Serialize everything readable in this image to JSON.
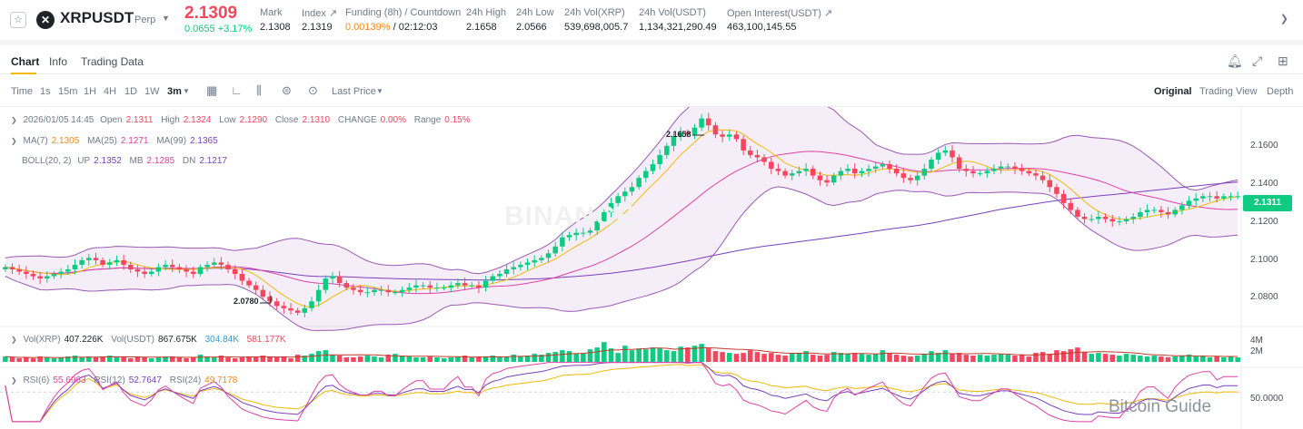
{
  "ticker": {
    "symbol": "XRPUSDT",
    "contract": "Perp",
    "price": "2.1309",
    "change": "0.0655 +3.17%",
    "stats": [
      {
        "label": "Mark",
        "value": "2.1308"
      },
      {
        "label": "Index ↗",
        "value": "2.1319"
      },
      {
        "label": "Funding (8h) / Countdown",
        "value_a": "0.00139%",
        "value_b": " / 02:12:03"
      },
      {
        "label": "24h High",
        "value": "2.1658"
      },
      {
        "label": "24h Low",
        "value": "2.0566"
      },
      {
        "label": "24h Vol(XRP)",
        "value": "539,698,005.7"
      },
      {
        "label": "24h Vol(USDT)",
        "value": "1,134,321,290.49"
      },
      {
        "label": "Open Interest(USDT) ↗",
        "value": "463,100,145.55"
      }
    ]
  },
  "tabs": [
    "Chart",
    "Info",
    "Trading Data"
  ],
  "icons": {
    "star": "star-icon",
    "logo": "xrp-logo-icon",
    "bell": "bell-icon",
    "expand": "expand-icon",
    "grid": "grid-icon"
  },
  "toolbar": {
    "intervals": [
      "Time",
      "1s",
      "15m",
      "1H",
      "4H",
      "1D",
      "1W",
      "3m"
    ],
    "active_interval": "3m",
    "price_type": "Last Price",
    "views": [
      "Original",
      "Trading View",
      "Depth"
    ],
    "active_view": "Original"
  },
  "legend": {
    "ohlc": {
      "date": "2026/01/05 14:45",
      "open_label": "Open",
      "open": "2.1311",
      "high_label": "High",
      "high": "2.1324",
      "low_label": "Low",
      "low": "2.1290",
      "close_label": "Close",
      "close": "2.1310",
      "change_label": "CHANGE",
      "change": "0.00%",
      "range_label": "Range",
      "range": "0.15%"
    },
    "ma": {
      "ma7_label": "MA(7)",
      "ma7": "2.1305",
      "ma25_label": "MA(25)",
      "ma25": "2.1271",
      "ma99_label": "MA(99)",
      "ma99": "2.1365"
    },
    "boll": {
      "label": "BOLL(20, 2)",
      "up_label": "UP",
      "up": "2.1352",
      "mb_label": "MB",
      "mb": "2.1285",
      "dn_label": "DN",
      "dn": "2.1217"
    },
    "vol": {
      "vol_xrp_label": "Vol(XRP)",
      "vol_xrp": "407.226K",
      "vol_usdt_label": "Vol(USDT)",
      "vol_usdt": "867.675K",
      "ma5": "304.84K",
      "ma10": "581.177K"
    },
    "rsi": {
      "rsi6_label": "RSI(6)",
      "rsi6": "55.6963",
      "rsi12_label": "RSI(12)",
      "rsi12": "52.7647",
      "rsi24_label": "RSI(24)",
      "rsi24": "49.7178"
    }
  },
  "chart_data": {
    "type": "candlestick",
    "price_axis_ticks": [
      "2.1600",
      "2.1400",
      "2.1200",
      "2.1000",
      "2.0800"
    ],
    "volume_axis_ticks": [
      "4M",
      "2M"
    ],
    "rsi_axis_ticks": [
      "50.0000"
    ],
    "last_price_tag": "2.1311",
    "high_marker": "2.1658",
    "low_marker": "2.0780",
    "ylim": [
      2.074,
      2.17
    ],
    "colors": {
      "up": "#0ecb81",
      "down": "#f6465d",
      "ma7": "#f0b90b",
      "ma25": "#e040a6",
      "ma99": "#7b3fbf",
      "boll": "#9b59b6"
    },
    "closes": [
      2.1,
      2.099,
      2.098,
      2.097,
      2.096,
      2.095,
      2.096,
      2.097,
      2.098,
      2.099,
      2.101,
      2.103,
      2.104,
      2.103,
      2.101,
      2.102,
      2.103,
      2.101,
      2.099,
      2.098,
      2.097,
      2.098,
      2.1,
      2.101,
      2.1,
      2.099,
      2.098,
      2.097,
      2.1,
      2.101,
      2.102,
      2.101,
      2.099,
      2.097,
      2.094,
      2.092,
      2.09,
      2.087,
      2.085,
      2.083,
      2.082,
      2.081,
      2.08,
      2.082,
      2.085,
      2.09,
      2.095,
      2.096,
      2.093,
      2.091,
      2.09,
      2.089,
      2.089,
      2.09,
      2.09,
      2.089,
      2.089,
      2.09,
      2.091,
      2.092,
      2.092,
      2.091,
      2.091,
      2.091,
      2.092,
      2.093,
      2.092,
      2.092,
      2.091,
      2.094,
      2.096,
      2.097,
      2.099,
      2.1,
      2.101,
      2.102,
      2.103,
      2.104,
      2.106,
      2.109,
      2.113,
      2.114,
      2.115,
      2.115,
      2.116,
      2.12,
      2.124,
      2.128,
      2.131,
      2.133,
      2.135,
      2.139,
      2.142,
      2.145,
      2.149,
      2.153,
      2.157,
      2.159,
      2.158,
      2.161,
      2.165,
      2.162,
      2.158,
      2.157,
      2.158,
      2.156,
      2.151,
      2.149,
      2.148,
      2.146,
      2.143,
      2.142,
      2.14,
      2.141,
      2.142,
      2.143,
      2.14,
      2.138,
      2.137,
      2.14,
      2.142,
      2.143,
      2.141,
      2.142,
      2.143,
      2.144,
      2.145,
      2.143,
      2.141,
      2.139,
      2.138,
      2.14,
      2.143,
      2.147,
      2.15,
      2.151,
      2.148,
      2.143,
      2.142,
      2.141,
      2.141,
      2.142,
      2.143,
      2.144,
      2.144,
      2.143,
      2.142,
      2.141,
      2.14,
      2.138,
      2.135,
      2.132,
      2.128,
      2.125,
      2.122,
      2.121,
      2.121,
      2.122,
      2.121,
      2.12,
      2.12,
      2.121,
      2.122,
      2.124,
      2.125,
      2.125,
      2.124,
      2.123,
      2.125,
      2.127,
      2.129,
      2.13,
      2.131,
      2.131,
      2.13,
      2.131,
      2.131,
      2.131
    ],
    "volumes": [
      0.6,
      0.5,
      0.4,
      0.5,
      0.4,
      0.6,
      0.5,
      0.4,
      0.5,
      0.6,
      0.7,
      0.5,
      0.6,
      0.5,
      0.6,
      0.7,
      0.5,
      0.5,
      0.4,
      0.6,
      0.5,
      0.4,
      0.5,
      0.6,
      0.6,
      0.5,
      0.4,
      0.5,
      0.8,
      0.6,
      0.5,
      0.7,
      0.5,
      0.4,
      0.5,
      0.6,
      0.5,
      0.7,
      0.6,
      0.5,
      0.6,
      0.4,
      0.8,
      0.7,
      0.9,
      1.2,
      1.3,
      0.8,
      0.7,
      0.5,
      0.5,
      0.6,
      0.7,
      0.6,
      0.5,
      0.8,
      0.9,
      0.7,
      0.6,
      0.5,
      0.5,
      0.6,
      0.5,
      0.4,
      0.5,
      0.6,
      0.7,
      0.5,
      0.6,
      0.6,
      0.7,
      0.5,
      0.6,
      0.8,
      0.6,
      0.7,
      0.9,
      0.8,
      1.0,
      1.1,
      1.3,
      1.2,
      0.9,
      1.0,
      1.4,
      1.6,
      2.2,
      1.5,
      1.0,
      1.8,
      1.3,
      1.5,
      1.4,
      1.6,
      1.5,
      1.3,
      1.2,
      1.7,
      1.6,
      1.8,
      2.0,
      1.5,
      1.2,
      1.1,
      1.0,
      0.9,
      1.0,
      1.3,
      1.1,
      0.9,
      1.0,
      0.8,
      0.7,
      0.9,
      1.0,
      1.2,
      0.8,
      0.7,
      0.8,
      1.1,
      1.0,
      0.9,
      1.0,
      0.9,
      0.8,
      0.9,
      1.3,
      1.0,
      0.8,
      0.7,
      0.6,
      0.7,
      0.9,
      1.2,
      1.0,
      1.3,
      0.9,
      1.0,
      0.8,
      0.7,
      0.8,
      0.7,
      0.8,
      0.9,
      0.8,
      0.7,
      0.8,
      0.6,
      1.0,
      1.1,
      0.9,
      1.3,
      1.2,
      1.4,
      1.6,
      1.1,
      0.9,
      1.0,
      0.9,
      0.8,
      0.7,
      0.9,
      0.8,
      0.7,
      0.6,
      0.7,
      0.6,
      0.5,
      0.6,
      0.7,
      0.8,
      0.6,
      0.7,
      0.5,
      0.6,
      0.5,
      0.6,
      0.5
    ]
  },
  "watermark": "BINANCE",
  "credit": "Bitcoin Guide"
}
